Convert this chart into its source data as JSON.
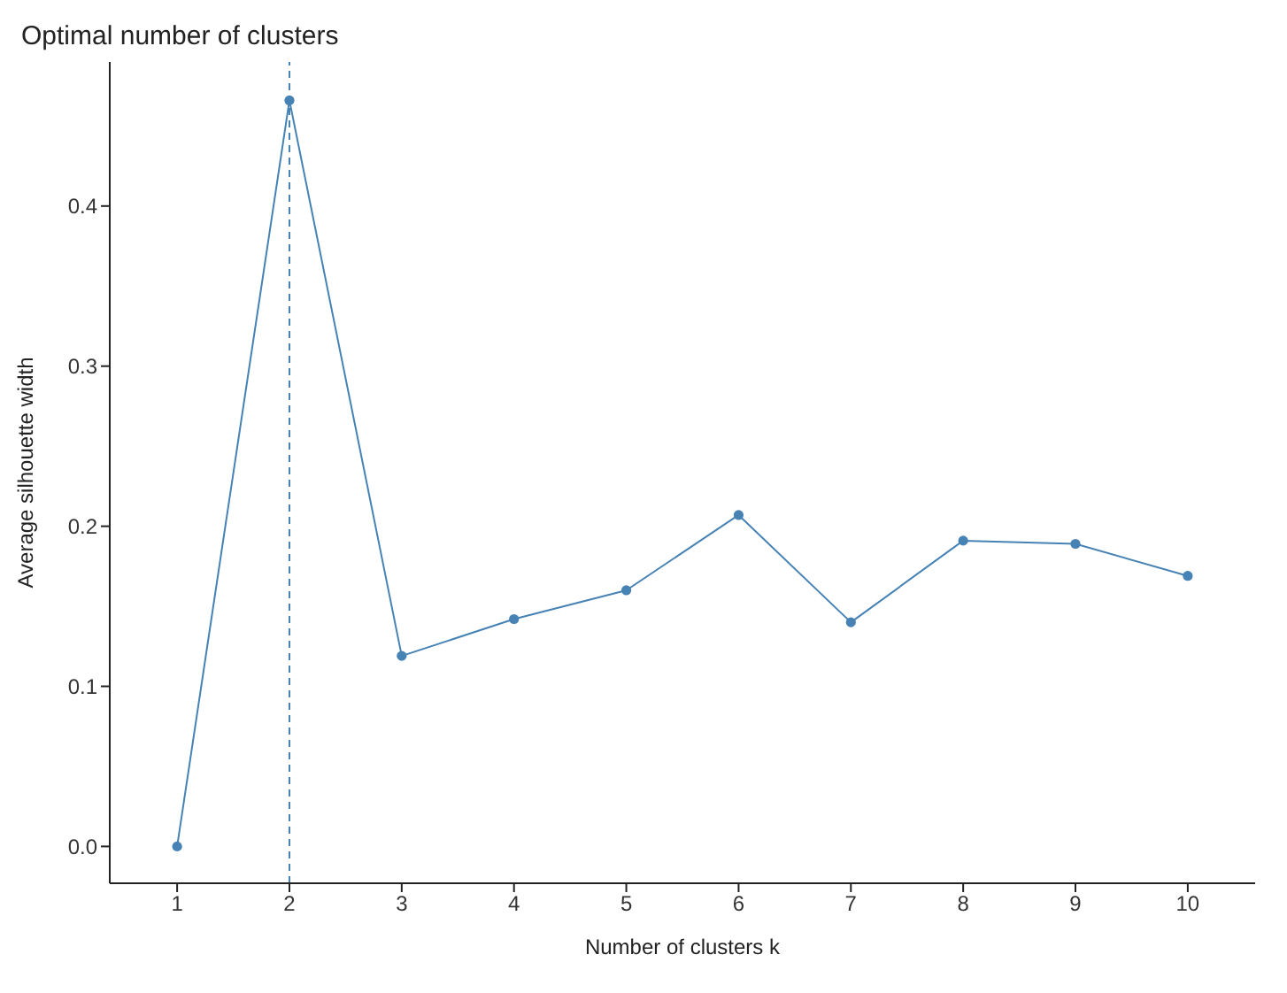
{
  "chart_data": {
    "type": "line",
    "title": "Optimal number of clusters",
    "xlabel": "Number of clusters k",
    "ylabel": "Average silhouette width",
    "x": [
      1,
      2,
      3,
      4,
      5,
      6,
      7,
      8,
      9,
      10
    ],
    "series": [
      {
        "color": "#4682b4",
        "values": [
          0,
          0.466,
          0.119,
          0.142,
          0.16,
          0.207,
          0.14,
          0.191,
          0.189,
          0.169
        ]
      }
    ],
    "xlim": [
      0.4,
      10.6
    ],
    "xticks": [
      1,
      2,
      3,
      4,
      5,
      6,
      7,
      8,
      9,
      10
    ],
    "ylim": [
      -0.023,
      0.49
    ],
    "yticks": [
      {
        "value": 0,
        "label": "0.0"
      },
      0.1,
      0.2,
      0.3,
      0.4
    ],
    "ref_lines": [
      {
        "axis": "x",
        "value": 2,
        "color": "#4682b4",
        "line_style": "dashed"
      }
    ],
    "grid": false,
    "legend": false,
    "marker": "circle",
    "line_style": "solid"
  }
}
